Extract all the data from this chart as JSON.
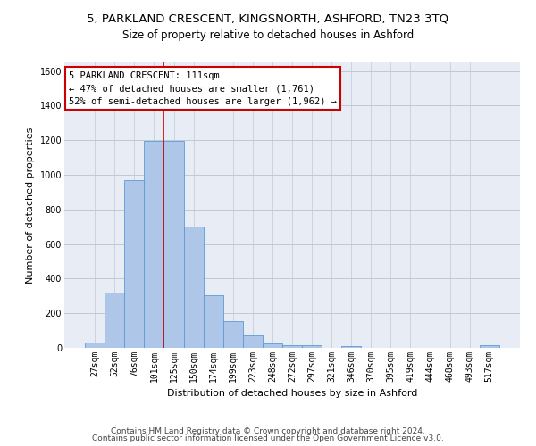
{
  "title": "5, PARKLAND CRESCENT, KINGSNORTH, ASHFORD, TN23 3TQ",
  "subtitle": "Size of property relative to detached houses in Ashford",
  "xlabel": "Distribution of detached houses by size in Ashford",
  "ylabel": "Number of detached properties",
  "bins": [
    "27sqm",
    "52sqm",
    "76sqm",
    "101sqm",
    "125sqm",
    "150sqm",
    "174sqm",
    "199sqm",
    "223sqm",
    "248sqm",
    "272sqm",
    "297sqm",
    "321sqm",
    "346sqm",
    "370sqm",
    "395sqm",
    "419sqm",
    "444sqm",
    "468sqm",
    "493sqm",
    "517sqm"
  ],
  "bar_values": [
    30,
    320,
    970,
    1195,
    1195,
    700,
    305,
    155,
    70,
    25,
    18,
    15,
    0,
    10,
    0,
    0,
    0,
    0,
    0,
    0,
    15
  ],
  "bar_color": "#aec6e8",
  "bar_edge_color": "#5b9bd5",
  "grid_color": "#c0c8d8",
  "bg_color": "#e8edf5",
  "vline_color": "#cc0000",
  "vline_x_idx": 3.5,
  "annotation_line1": "5 PARKLAND CRESCENT: 111sqm",
  "annotation_line2": "← 47% of detached houses are smaller (1,761)",
  "annotation_line3": "52% of semi-detached houses are larger (1,962) →",
  "annotation_box_color": "#cc0000",
  "ylim": [
    0,
    1650
  ],
  "yticks": [
    0,
    200,
    400,
    600,
    800,
    1000,
    1200,
    1400,
    1600
  ],
  "footer1": "Contains HM Land Registry data © Crown copyright and database right 2024.",
  "footer2": "Contains public sector information licensed under the Open Government Licence v3.0.",
  "title_fontsize": 9.5,
  "subtitle_fontsize": 8.5,
  "xlabel_fontsize": 8,
  "ylabel_fontsize": 8,
  "tick_fontsize": 7,
  "annotation_fontsize": 7.5,
  "footer_fontsize": 6.5
}
